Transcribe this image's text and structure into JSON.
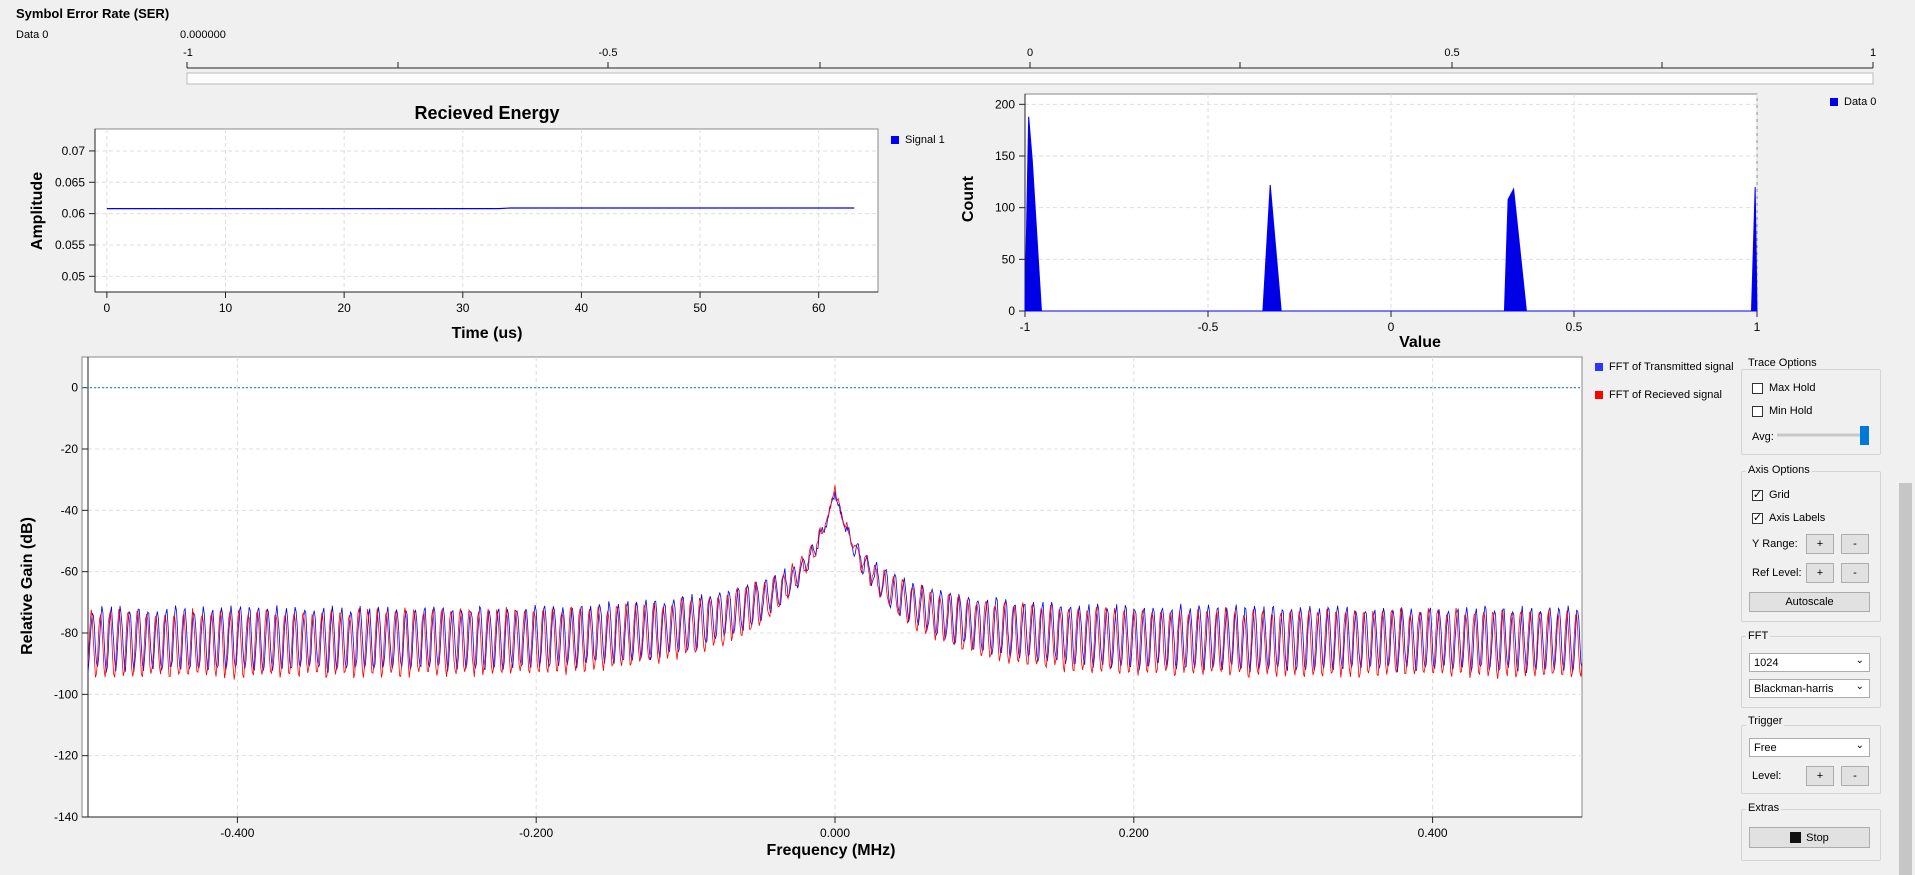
{
  "ser": {
    "title": "Symbol Error Rate (SER)",
    "label": "Data 0",
    "value": "0.000000",
    "ticks": [
      "-1",
      "-0.5",
      "0",
      "0.5",
      "1"
    ]
  },
  "energy_plot": {
    "legend": "Signal 1",
    "colors": {
      "line": "#0000ff"
    }
  },
  "histogram_plot": {
    "legend": "Data 0",
    "colors": {
      "fill": "#0000e6"
    }
  },
  "fft_plot": {
    "legend_tx": "FFT of Transmitted signal",
    "legend_rx": "FFT of Recieved signal",
    "colors": {
      "tx": "#0000ff",
      "rx": "#ff0000",
      "ref": "#2a8c9a"
    }
  },
  "controls": {
    "trace_options": {
      "title": "Trace Options",
      "max_hold": "Max Hold",
      "min_hold": "Min Hold",
      "avg": "Avg:",
      "avg_level": 1.0
    },
    "axis_options": {
      "title": "Axis Options",
      "grid": "Grid",
      "axis_labels": "Axis Labels",
      "y_range": "Y Range:",
      "ref_level": "Ref Level:",
      "plus": "+",
      "minus": "-",
      "autoscale": "Autoscale"
    },
    "fft": {
      "title": "FFT",
      "size": "1024",
      "window": "Blackman-harris"
    },
    "trigger": {
      "title": "Trigger",
      "mode": "Free",
      "level": "Level:",
      "plus": "+",
      "minus": "-"
    },
    "extras": {
      "title": "Extras",
      "stop": "Stop"
    }
  },
  "chart_data": [
    {
      "type": "line",
      "title": "Recieved Energy",
      "xlabel": "Time (us)",
      "ylabel": "Amplitude",
      "xlim": [
        -1,
        65
      ],
      "ylim": [
        0.0475,
        0.0735
      ],
      "xticks": [
        "0",
        "10",
        "20",
        "30",
        "40",
        "50",
        "60"
      ],
      "yticks": [
        "0.05",
        "0.055",
        "0.06",
        "0.065",
        "0.07"
      ],
      "grid": true,
      "legend": "right",
      "series": [
        {
          "name": "Signal 1",
          "x": [
            0,
            33,
            34,
            63
          ],
          "y": [
            0.0608,
            0.0608,
            0.0609,
            0.0609
          ]
        }
      ]
    },
    {
      "type": "area",
      "xlabel": "Value",
      "ylabel": "Count",
      "xlim": [
        -1,
        1
      ],
      "ylim": [
        0,
        210
      ],
      "xticks": [
        "-1",
        "-0.5",
        "0",
        "0.5",
        "1"
      ],
      "yticks": [
        "0",
        "50",
        "100",
        "150",
        "200"
      ],
      "grid": true,
      "legend": "right",
      "series": [
        {
          "name": "Data 0",
          "x": [
            -1,
            -0.99,
            -0.98,
            -0.955,
            -0.35,
            -0.33,
            -0.3,
            0.31,
            0.32,
            0.335,
            0.37,
            0.985,
            0.995,
            1
          ],
          "y": [
            0,
            188,
            145,
            0,
            0,
            122,
            0,
            0,
            108,
            118,
            0,
            0,
            120,
            0
          ]
        }
      ]
    },
    {
      "type": "line",
      "xlabel": "Frequency (MHz)",
      "ylabel": "Relative Gain (dB)",
      "xlim": [
        -0.5,
        0.5
      ],
      "ylim": [
        -140,
        10
      ],
      "xticks": [
        "-0.400",
        "-0.200",
        "0.000",
        "0.200",
        "0.400"
      ],
      "yticks": [
        "0",
        "-20",
        "-40",
        "-60",
        "-80",
        "-100",
        "-120",
        "-140"
      ],
      "grid": true,
      "legend": "right",
      "reference_line": 0,
      "series": [
        {
          "name": "FFT of Transmitted signal",
          "envelope_peak_db": -34,
          "floor_db": -72,
          "trough_db": -92,
          "oscillations": 162
        },
        {
          "name": "FFT of Recieved signal",
          "envelope_peak_db": -33,
          "floor_db": -73,
          "trough_db": -94,
          "oscillations": 162
        }
      ]
    }
  ]
}
